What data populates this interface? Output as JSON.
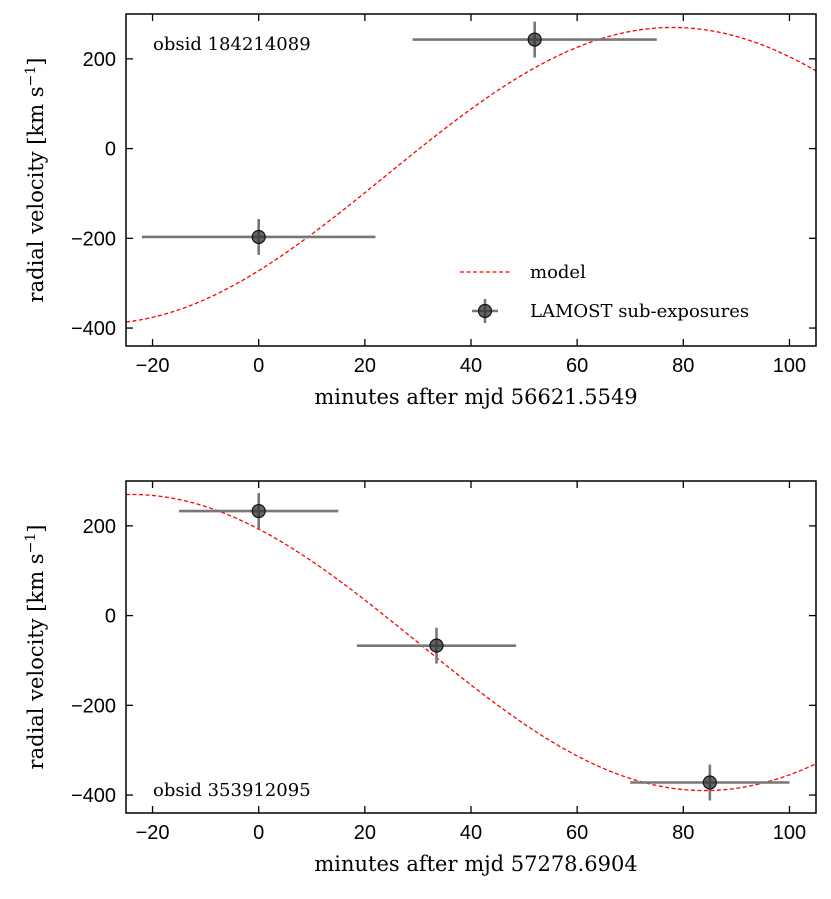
{
  "chart_data": [
    {
      "type": "scatter",
      "annotation": "obsid 184214089",
      "xlabel": "minutes after mjd 56621.5549",
      "ylabel_main": "radial velocity [km s",
      "ylabel_sup": "−1",
      "ylabel_close": "]",
      "xlim": [
        -25,
        105
      ],
      "ylim": [
        -440,
        300
      ],
      "xticks": [
        -20,
        0,
        20,
        40,
        60,
        80,
        100
      ],
      "yticks": [
        -400,
        -200,
        0,
        200
      ],
      "legend": {
        "placement": "lower-right",
        "model_label": "model",
        "data_label": "LAMOST sub-exposures"
      },
      "points": [
        {
          "x": 0,
          "y": -197,
          "xerr": 22,
          "yerr": 40
        },
        {
          "x": 52,
          "y": 243,
          "xerr": 23,
          "yerr": 40
        }
      ],
      "model": {
        "amplitude": 330,
        "offset": -60,
        "peak_minute": 78,
        "period_minutes": 216
      }
    },
    {
      "type": "scatter",
      "annotation": "obsid 353912095",
      "xlabel": "minutes after mjd 57278.6904",
      "ylabel_main": "radial velocity [km s",
      "ylabel_sup": "−1",
      "ylabel_close": "]",
      "xlim": [
        -25,
        105
      ],
      "ylim": [
        -440,
        300
      ],
      "xticks": [
        -20,
        0,
        20,
        40,
        60,
        80,
        100
      ],
      "yticks": [
        -400,
        -200,
        0,
        200
      ],
      "points": [
        {
          "x": 0,
          "y": 233,
          "xerr": 15,
          "yerr": 40
        },
        {
          "x": 33.5,
          "y": -67,
          "xerr": 15,
          "yerr": 40
        },
        {
          "x": 85,
          "y": -372,
          "xerr": 15,
          "yerr": 40
        }
      ],
      "model": {
        "amplitude": 330,
        "offset": -60,
        "peak_minute": -24,
        "period_minutes": 216
      }
    }
  ],
  "colors": {
    "model": "#ff0000",
    "errorbar": "#777777",
    "marker": "#333333"
  }
}
